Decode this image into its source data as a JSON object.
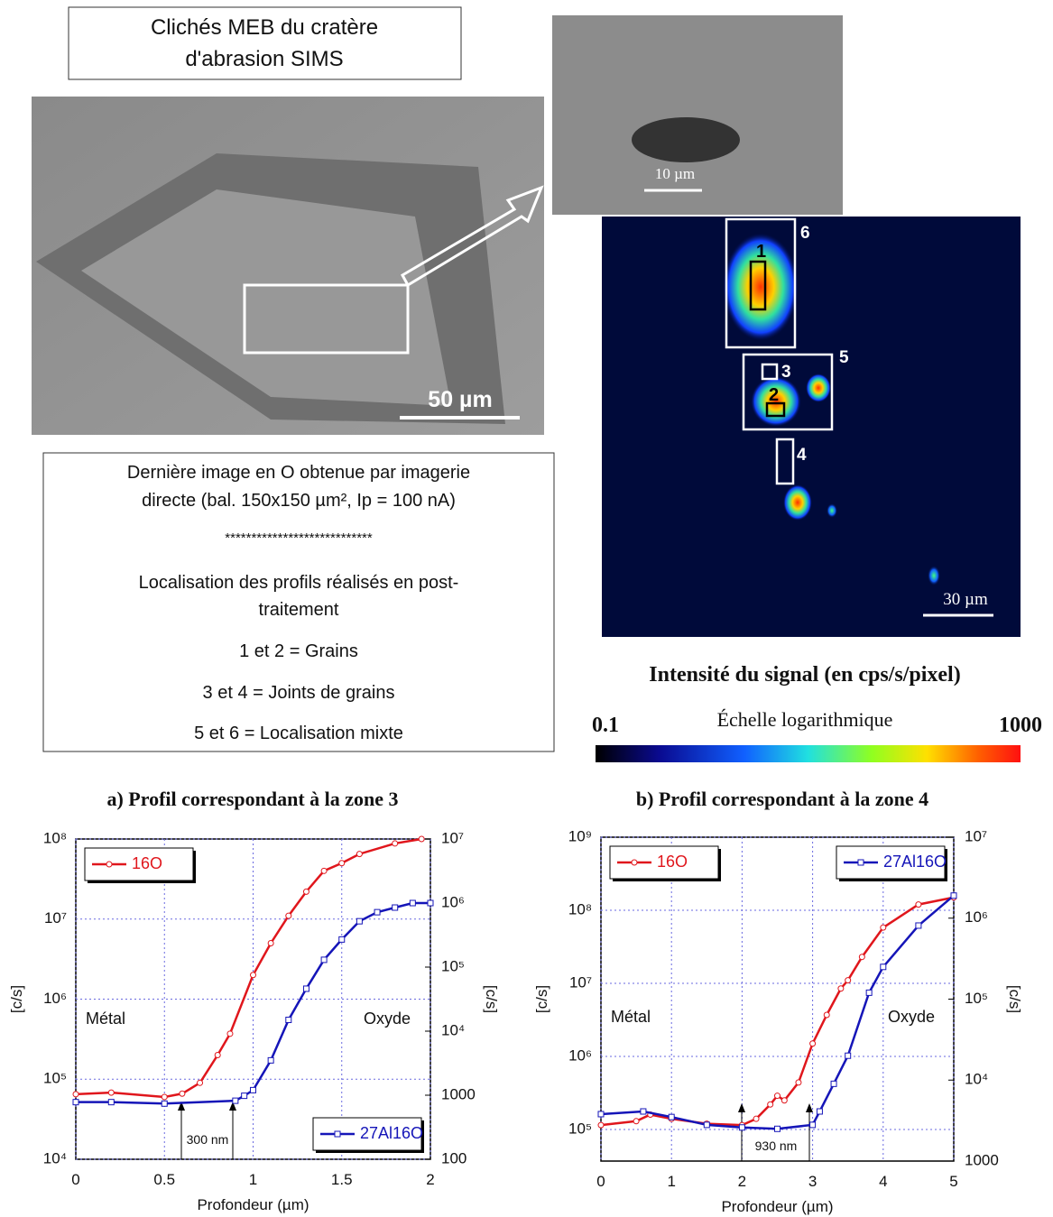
{
  "sem_box": {
    "lines": [
      "Clichés MEB du cratère",
      "d'abrasion SIMS"
    ]
  },
  "sem_image": {
    "scale": "50 µm"
  },
  "sem_zoom": {
    "scale": "10 µm"
  },
  "sims_map": {
    "scale": "30 µm",
    "zones": [
      "1",
      "2",
      "3",
      "4",
      "5",
      "6"
    ]
  },
  "info_box": {
    "lines": [
      "Dernière image en O obtenue par imagerie",
      "directe (bal. 150x150 µm², Ip = 100 nA)",
      "****************************",
      "Localisation des profils réalisés en post-",
      "traitement",
      "1 et 2 = Grains",
      "3 et 4 = Joints de grains",
      "5 et 6 = Localisation mixte"
    ]
  },
  "colorbar": {
    "title": "Intensité du signal (en cps/s/pixel)",
    "min": 0.1,
    "max": 1000,
    "scale_label": "Échelle logarithmique"
  },
  "chart_data": [
    {
      "type": "line",
      "title": "a) Profil correspondant à la zone 3",
      "xlabel": "Profondeur (µm)",
      "ylabel": "[c/s]",
      "y2label": "[c/s]",
      "xlim": [
        0,
        2
      ],
      "xticks": [
        0,
        0.5,
        1,
        1.5,
        2
      ],
      "ylim": [
        10000,
        100000000
      ],
      "ylog": true,
      "yticks": [
        {
          "value": 10000,
          "label": "10⁴"
        },
        {
          "value": 100000,
          "label": "10⁵"
        },
        {
          "value": 1000000,
          "label": "10⁶"
        },
        {
          "value": 10000000,
          "label": "10⁷"
        },
        {
          "value": 100000000,
          "label": "10⁸"
        }
      ],
      "y2lim": [
        100,
        10000000
      ],
      "y2log": true,
      "y2ticks": [
        100,
        1000,
        {
          "value": 10000,
          "label": "10⁴"
        },
        {
          "value": 100000,
          "label": "10⁵"
        },
        {
          "value": 1000000,
          "label": "10⁶"
        },
        {
          "value": 10000000,
          "label": "10⁷"
        }
      ],
      "grid": true,
      "annotations": [
        "Métal",
        "Oxyde",
        "300 nm"
      ],
      "series": [
        {
          "name": "16O",
          "color": "#e0161c",
          "marker": "circle",
          "legend_loc": "upper left",
          "x": [
            0,
            0.2,
            0.5,
            0.6,
            0.7,
            0.8,
            0.87,
            1.0,
            1.1,
            1.2,
            1.3,
            1.4,
            1.5,
            1.6,
            1.8,
            1.95
          ],
          "values": [
            65000,
            68000,
            60000,
            66000,
            90000,
            200000,
            370000,
            2000000,
            5000000,
            11000000,
            22000000,
            40000000,
            50000000,
            65000000,
            88000000,
            100000000
          ]
        },
        {
          "name": "27Al16O",
          "color": "#1515b8",
          "marker": "square",
          "axis": "y2",
          "legend_loc": "lower right",
          "x": [
            0,
            0.2,
            0.5,
            0.9,
            0.95,
            1.0,
            1.1,
            1.2,
            1.3,
            1.4,
            1.5,
            1.6,
            1.7,
            1.8,
            1.9,
            2.0
          ],
          "values": [
            780,
            780,
            740,
            820,
            980,
            1200,
            3500,
            15000,
            46000,
            130000,
            270000,
            520000,
            720000,
            850000,
            1000000,
            1000000
          ]
        }
      ]
    },
    {
      "type": "line",
      "title": "b) Profil correspondant à la zone 4",
      "xlabel": "Profondeur (µm)",
      "ylabel": "[c/s]",
      "y2label": "[c/s]",
      "xlim": [
        0,
        5
      ],
      "xticks": [
        0,
        1,
        2,
        3,
        4,
        5
      ],
      "ylim": [
        37000,
        1000000000
      ],
      "ylog": true,
      "yticks": [
        {
          "value": 100000,
          "label": "10⁵"
        },
        {
          "value": 1000000,
          "label": "10⁶"
        },
        {
          "value": 10000000,
          "label": "10⁷"
        },
        {
          "value": 100000000,
          "label": "10⁸"
        },
        {
          "value": 1000000000,
          "label": "10⁹"
        }
      ],
      "y2lim": [
        1000,
        10000000
      ],
      "y2log": true,
      "y2ticks": [
        1000,
        {
          "value": 10000,
          "label": "10⁴"
        },
        {
          "value": 100000,
          "label": "10⁵"
        },
        {
          "value": 1000000,
          "label": "10⁶"
        },
        {
          "value": 10000000,
          "label": "10⁷"
        }
      ],
      "grid": true,
      "annotations": [
        "Métal",
        "Oxyde",
        "930 nm"
      ],
      "series": [
        {
          "name": "16O",
          "color": "#e0161c",
          "marker": "circle",
          "legend_loc": "upper left",
          "x": [
            0,
            0.5,
            0.7,
            1,
            1.5,
            2,
            2.2,
            2.4,
            2.5,
            2.6,
            2.8,
            3.0,
            3.2,
            3.4,
            3.5,
            3.7,
            4.0,
            4.5,
            5
          ],
          "values": [
            115000,
            130000,
            160000,
            140000,
            120000,
            115000,
            140000,
            220000,
            290000,
            250000,
            440000,
            1500000,
            3700000,
            8500000,
            11000000,
            23000000,
            58000000,
            120000000,
            150000000
          ]
        },
        {
          "name": "27Al16O",
          "color": "#1515b8",
          "marker": "square",
          "axis": "y2",
          "legend_loc": "upper right",
          "x": [
            0,
            0.6,
            1,
            1.5,
            2,
            2.5,
            3,
            3.1,
            3.3,
            3.5,
            3.8,
            4.0,
            4.5,
            5
          ],
          "values": [
            3800,
            4100,
            3500,
            2800,
            2600,
            2500,
            2800,
            4100,
            9000,
            20000,
            120000,
            250000,
            810000,
            1900000
          ]
        }
      ]
    }
  ]
}
